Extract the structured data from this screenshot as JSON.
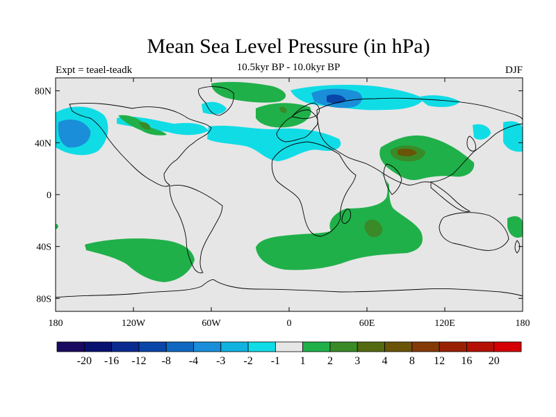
{
  "title": "Mean Sea Level Pressure (in hPa)",
  "subtitle": "10.5kyr BP - 10.0kyr BP",
  "left_label": "Expt = teael-teadk",
  "right_label": "DJF",
  "x_ticks": [
    {
      "label": "180",
      "lon": -180
    },
    {
      "label": "120W",
      "lon": -120
    },
    {
      "label": "60W",
      "lon": -60
    },
    {
      "label": "0",
      "lon": 0
    },
    {
      "label": "60E",
      "lon": 60
    },
    {
      "label": "120E",
      "lon": 120
    },
    {
      "label": "180",
      "lon": 180
    }
  ],
  "y_ticks": [
    {
      "label": "80N",
      "lat": 80
    },
    {
      "label": "40N",
      "lat": 40
    },
    {
      "label": "0",
      "lat": 0
    },
    {
      "label": "40S",
      "lat": -40
    },
    {
      "label": "80S",
      "lat": -80
    }
  ],
  "colorbar": {
    "colors": [
      "#1a0a60",
      "#081070",
      "#0a2a90",
      "#0a45a8",
      "#1068c0",
      "#1a8ed8",
      "#10b2e0",
      "#10dce6",
      "#e6e6e6",
      "#20b04a",
      "#3a8a28",
      "#536a10",
      "#6a5408",
      "#843a06",
      "#9a2004",
      "#b41004",
      "#d40004"
    ],
    "labels": [
      "-20",
      "-16",
      "-12",
      "-8",
      "-4",
      "-3",
      "-2",
      "-1",
      "1",
      "2",
      "3",
      "4",
      "8",
      "12",
      "16",
      "20"
    ]
  },
  "colors": {
    "background": "#e6e6e6",
    "neg_light": "#10dce6",
    "neg_mid": "#1a8ed8",
    "neg_dark": "#1068c0",
    "neg_darker": "#0a45a8",
    "pos_1": "#20b04a",
    "pos_2": "#3a8a28",
    "pos_3": "#6a5408"
  }
}
